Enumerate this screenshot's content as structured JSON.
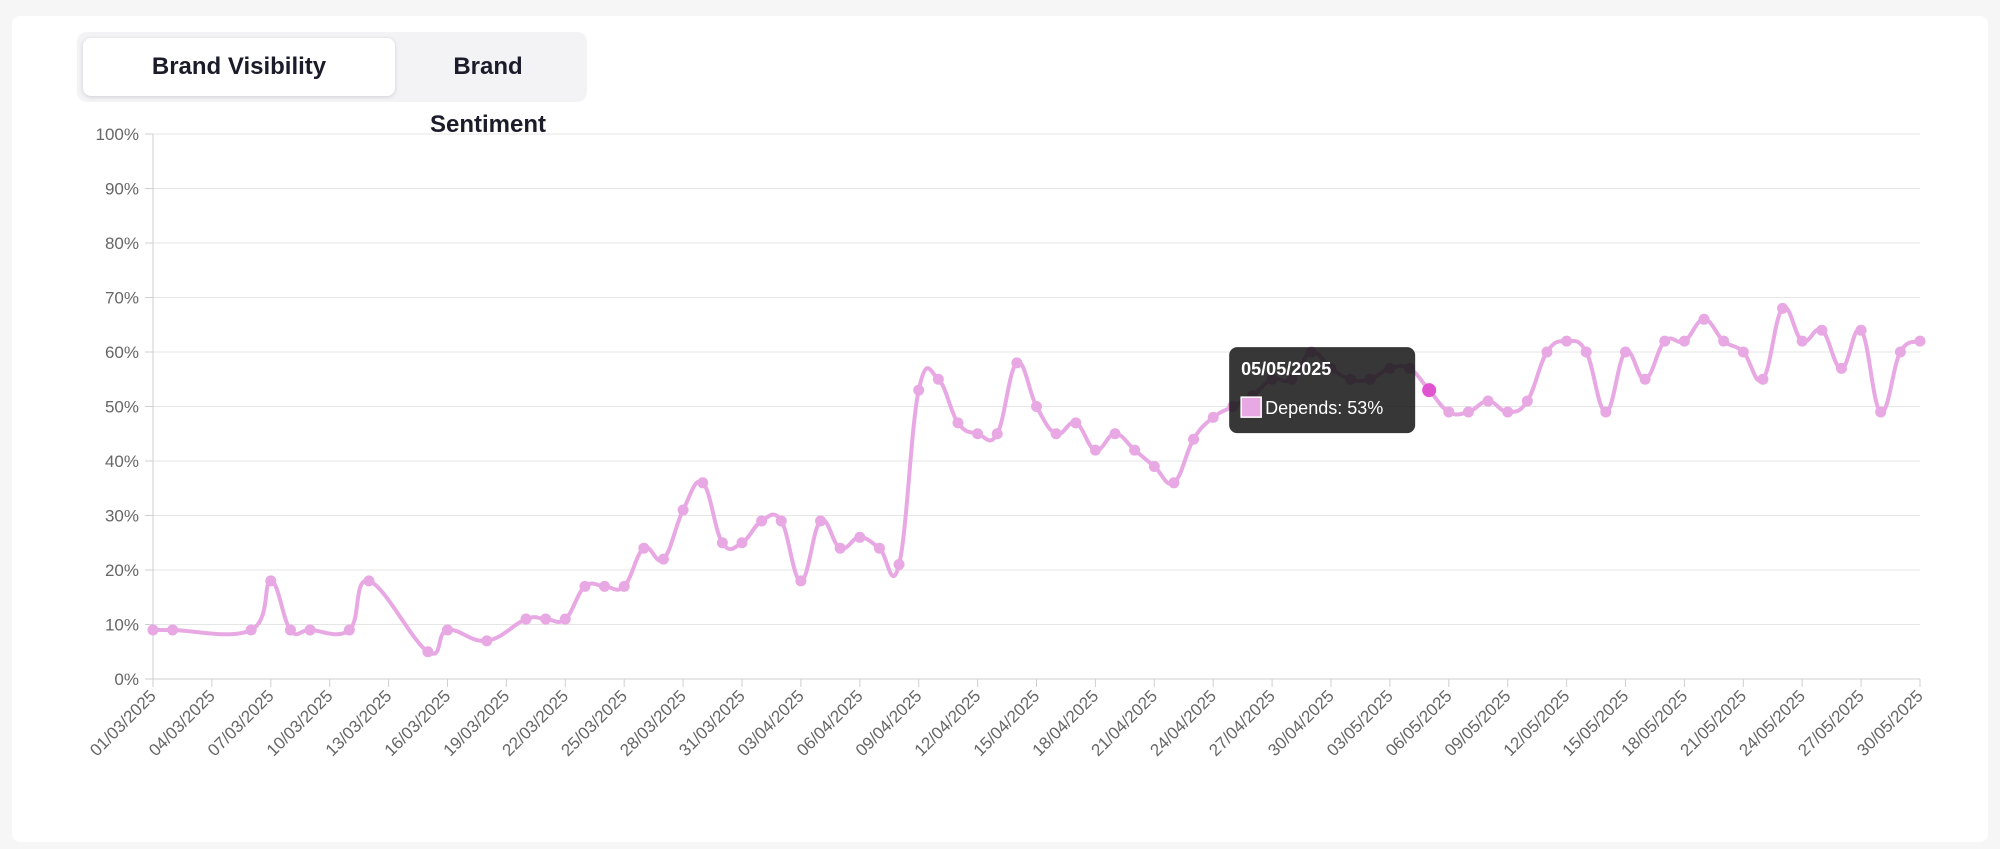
{
  "tabs": [
    "Brand Visibility",
    "Brand Sentiment"
  ],
  "chart_data": {
    "type": "line",
    "x": [
      "01/03/2025",
      "02/03/2025",
      "06/03/2025",
      "07/03/2025",
      "08/03/2025",
      "09/03/2025",
      "11/03/2025",
      "12/03/2025",
      "15/03/2025",
      "16/03/2025",
      "18/03/2025",
      "20/03/2025",
      "21/03/2025",
      "22/03/2025",
      "23/03/2025",
      "24/03/2025",
      "25/03/2025",
      "26/03/2025",
      "27/03/2025",
      "28/03/2025",
      "29/03/2025",
      "30/03/2025",
      "31/03/2025",
      "01/04/2025",
      "02/04/2025",
      "03/04/2025",
      "04/04/2025",
      "05/04/2025",
      "06/04/2025",
      "07/04/2025",
      "08/04/2025",
      "09/04/2025",
      "10/04/2025",
      "11/04/2025",
      "12/04/2025",
      "13/04/2025",
      "14/04/2025",
      "15/04/2025",
      "16/04/2025",
      "17/04/2025",
      "18/04/2025",
      "19/04/2025",
      "20/04/2025",
      "21/04/2025",
      "22/04/2025",
      "23/04/2025",
      "24/04/2025",
      "25/04/2025",
      "26/04/2025",
      "27/04/2025",
      "28/04/2025",
      "29/04/2025",
      "30/04/2025",
      "01/05/2025",
      "02/05/2025",
      "03/05/2025",
      "04/05/2025",
      "05/05/2025",
      "06/05/2025",
      "07/05/2025",
      "08/05/2025",
      "09/05/2025",
      "10/05/2025",
      "11/05/2025",
      "12/05/2025",
      "13/05/2025",
      "14/05/2025",
      "15/05/2025",
      "16/05/2025",
      "17/05/2025",
      "18/05/2025",
      "19/05/2025",
      "20/05/2025",
      "21/05/2025",
      "22/05/2025",
      "23/05/2025",
      "24/05/2025",
      "25/05/2025",
      "26/05/2025",
      "27/05/2025",
      "28/05/2025",
      "29/05/2025",
      "30/05/2025"
    ],
    "series": [
      {
        "name": "Depends",
        "color": "#e8a8e3",
        "values": [
          9,
          9,
          9,
          18,
          9,
          9,
          9,
          18,
          5,
          9,
          7,
          11,
          11,
          11,
          17,
          17,
          17,
          24,
          22,
          31,
          36,
          25,
          25,
          29,
          29,
          18,
          29,
          24,
          26,
          24,
          21,
          53,
          55,
          47,
          45,
          45,
          58,
          50,
          45,
          47,
          42,
          45,
          42,
          39,
          36,
          44,
          48,
          50,
          52,
          55,
          55,
          60,
          57,
          55,
          55,
          57,
          57,
          53,
          49,
          49,
          51,
          49,
          51,
          60,
          62,
          60,
          49,
          60,
          55,
          62,
          62,
          66,
          62,
          60,
          55,
          68,
          62,
          64,
          57,
          64,
          49,
          60,
          62
        ]
      }
    ],
    "xlim": [
      "01/03/2025",
      "30/05/2025"
    ],
    "xticks": [
      "01/03/2025",
      "04/03/2025",
      "07/03/2025",
      "10/03/2025",
      "13/03/2025",
      "16/03/2025",
      "19/03/2025",
      "22/03/2025",
      "25/03/2025",
      "28/03/2025",
      "31/03/2025",
      "03/04/2025",
      "06/04/2025",
      "09/04/2025",
      "12/04/2025",
      "15/04/2025",
      "18/04/2025",
      "21/04/2025",
      "24/04/2025",
      "27/04/2025",
      "30/04/2025",
      "03/05/2025",
      "06/05/2025",
      "09/05/2025",
      "12/05/2025",
      "15/05/2025",
      "18/05/2025",
      "21/05/2025",
      "24/05/2025",
      "27/05/2025",
      "30/05/2025"
    ],
    "ylim": [
      0,
      100
    ],
    "yticks": [
      {
        "value": 0,
        "label": "0%"
      },
      {
        "value": 10,
        "label": "10%"
      },
      {
        "value": 20,
        "label": "20%"
      },
      {
        "value": 30,
        "label": "30%"
      },
      {
        "value": 40,
        "label": "40%"
      },
      {
        "value": 50,
        "label": "50%"
      },
      {
        "value": 60,
        "label": "60%"
      },
      {
        "value": 70,
        "label": "70%"
      },
      {
        "value": 80,
        "label": "80%"
      },
      {
        "value": 90,
        "label": "90%"
      },
      {
        "value": 100,
        "label": "100%"
      }
    ],
    "grid": true,
    "tooltip": {
      "title": "05/05/2025",
      "text": "Depends: 53%"
    }
  }
}
